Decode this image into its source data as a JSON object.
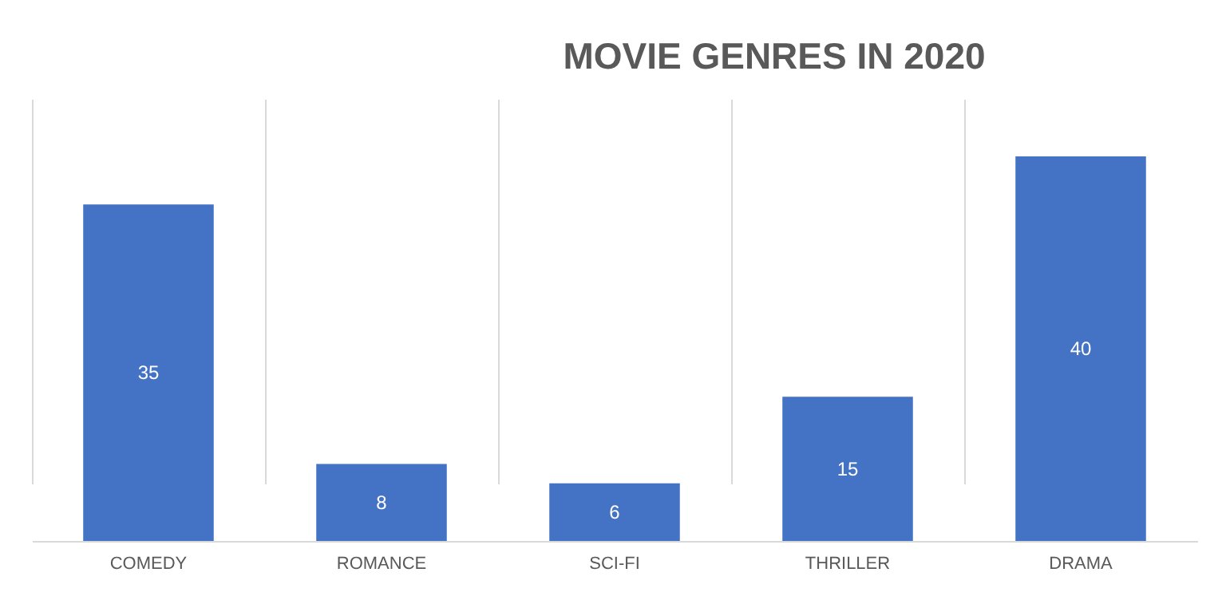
{
  "chart_data": {
    "type": "bar",
    "title": "MOVIE GENRES IN 2020",
    "categories": [
      "COMEDY",
      "ROMANCE",
      "SCI-FI",
      "THRILLER",
      "DRAMA"
    ],
    "values": [
      35,
      8,
      6,
      15,
      40
    ],
    "color": "#4472c4",
    "data_labels": true,
    "grid": "x",
    "tick_labels": "x"
  }
}
